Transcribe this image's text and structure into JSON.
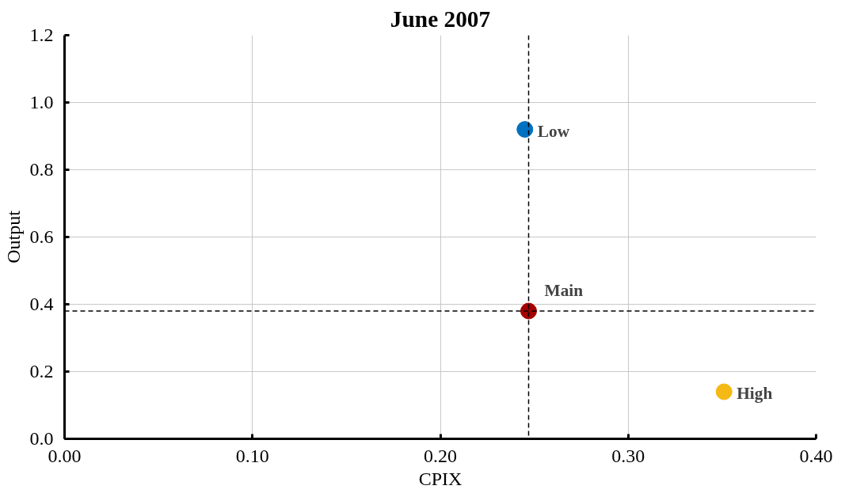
{
  "chart_data": {
    "type": "scatter",
    "title": "June 2007",
    "xlabel": "CPIX",
    "ylabel": "Output",
    "series": [
      {
        "name": "Low",
        "color": "#0070c0",
        "x": [
          0.245
        ],
        "values": [
          0.92
        ]
      },
      {
        "name": "Main",
        "color": "#a50000",
        "x": [
          0.247
        ],
        "values": [
          0.38
        ]
      },
      {
        "name": "High",
        "color": "#f5b915",
        "x": [
          0.351
        ],
        "values": [
          0.14
        ]
      }
    ],
    "xlim": [
      0,
      0.4
    ],
    "xticks": [
      {
        "value": 0,
        "label": "0.00"
      },
      {
        "value": 0.1,
        "label": "0.10"
      },
      {
        "value": 0.2,
        "label": "0.20"
      },
      {
        "value": 0.3,
        "label": "0.30"
      },
      {
        "value": 0.4,
        "label": "0.40"
      }
    ],
    "ylim": [
      0,
      1.2
    ],
    "yticks": [
      {
        "value": 0,
        "label": "0.0"
      },
      {
        "value": 0.2,
        "label": "0.2"
      },
      {
        "value": 0.4,
        "label": "0.4"
      },
      {
        "value": 0.6,
        "label": "0.6"
      },
      {
        "value": 0.8,
        "label": "0.8"
      },
      {
        "value": 1.0,
        "label": "1.0"
      },
      {
        "value": 1.2,
        "label": "1.2"
      }
    ],
    "ref_lines": [
      {
        "axis": "x",
        "value": 0.247,
        "color": "#000000",
        "line_style": "dashed"
      },
      {
        "axis": "y",
        "value": 0.38,
        "color": "#000000",
        "line_style": "dashed"
      }
    ],
    "grid": true,
    "marker": "circle"
  }
}
